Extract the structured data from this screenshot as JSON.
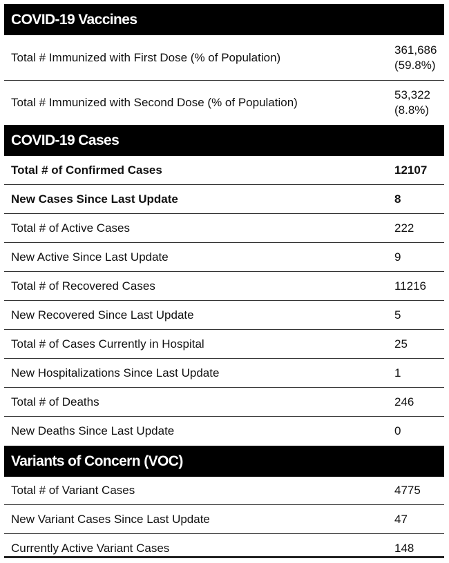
{
  "vaccines": {
    "title": "COVID-19 Vaccines",
    "rows": [
      {
        "label": "Total # Immunized with First Dose (% of Population)",
        "value_line1": "361,686",
        "value_line2": "(59.8%)"
      },
      {
        "label": "Total # Immunized with Second Dose (% of Population)",
        "value_line1": "53,322",
        "value_line2": "(8.8%)"
      }
    ]
  },
  "cases": {
    "title": "COVID-19 Cases",
    "rows": [
      {
        "label": "Total # of Confirmed Cases",
        "value": "12107"
      },
      {
        "label": "New Cases Since Last Update",
        "value": "8"
      },
      {
        "label": "Total # of Active Cases",
        "value": "222"
      },
      {
        "label": "New Active Since Last Update",
        "value": "9"
      },
      {
        "label": "Total # of Recovered Cases",
        "value": "11216"
      },
      {
        "label": "New Recovered Since Last Update",
        "value": "5"
      },
      {
        "label": "Total # of Cases Currently in Hospital",
        "value": "25"
      },
      {
        "label": "New Hospitalizations Since Last Update",
        "value": "1"
      },
      {
        "label": "Total # of Deaths",
        "value": "246"
      },
      {
        "label": "New Deaths Since Last Update",
        "value": "0"
      }
    ]
  },
  "variants": {
    "title": "Variants of Concern (VOC)",
    "rows": [
      {
        "label": "Total # of Variant Cases",
        "value": "4775"
      },
      {
        "label": "New Variant Cases Since Last Update",
        "value": "47"
      },
      {
        "label": "Currently Active Variant Cases",
        "value": "148"
      }
    ]
  }
}
